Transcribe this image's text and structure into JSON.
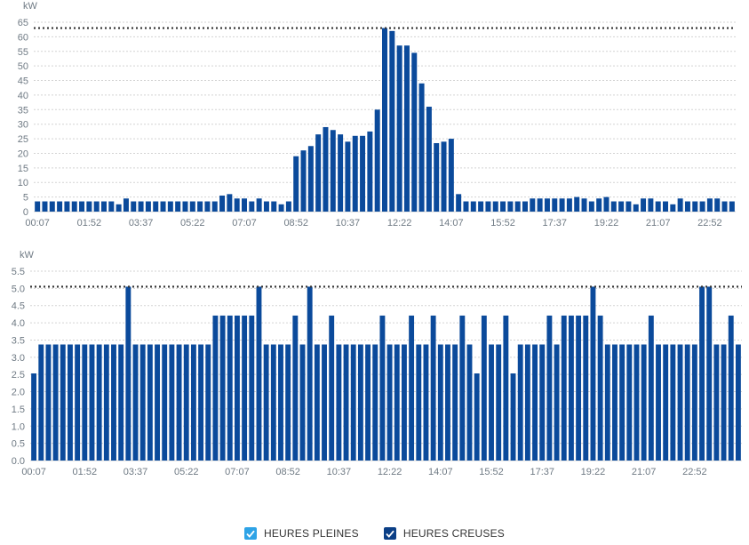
{
  "colors": {
    "bar": "#0b4a9b",
    "grid": "#d3d3d3",
    "axis_text": "#6f7a84",
    "threshold": "#333333",
    "legend_pleines": "#2ea3e6",
    "legend_creuses": "#0b3f86"
  },
  "legend": {
    "pleines_label": "HEURES PLEINES",
    "creuses_label": "HEURES CREUSES"
  },
  "chart_data": [
    {
      "type": "bar",
      "unit": "kW",
      "ylim": [
        0,
        65
      ],
      "yticks": [
        0,
        5,
        10,
        15,
        20,
        25,
        30,
        35,
        40,
        45,
        50,
        55,
        60,
        65
      ],
      "grid": true,
      "threshold": 63,
      "xtick_labels": [
        "00:07",
        "01:52",
        "03:37",
        "05:22",
        "07:07",
        "08:52",
        "10:37",
        "12:22",
        "14:07",
        "15:52",
        "17:37",
        "19:22",
        "21:07",
        "22:52"
      ],
      "xtick_every": 7,
      "values": [
        3.5,
        3.5,
        3.5,
        3.5,
        3.5,
        3.5,
        3.5,
        3.5,
        3.5,
        3.5,
        3.5,
        2.5,
        4.5,
        3.5,
        3.5,
        3.5,
        3.5,
        3.5,
        3.5,
        3.5,
        3.5,
        3.5,
        3.5,
        3.5,
        3.5,
        5.5,
        6,
        4.5,
        4.5,
        3.5,
        4.5,
        3.5,
        3.5,
        2.5,
        3.5,
        19,
        21,
        22.5,
        26.5,
        29,
        28,
        26.5,
        24,
        26,
        26,
        27.5,
        35,
        63,
        62,
        57,
        57,
        54.5,
        44,
        36,
        23.5,
        24,
        25,
        6,
        3.5,
        3.5,
        3.5,
        3.5,
        3.5,
        3.5,
        3.5,
        3.5,
        3.5,
        4.5,
        4.5,
        4.5,
        4.5,
        4.5,
        4.5,
        5,
        4.5,
        3.5,
        4.5,
        5,
        3.5,
        3.5,
        3.5,
        2.5,
        4.5,
        4.5,
        3.5,
        3.5,
        2.5,
        4.5,
        3.5,
        3.5,
        3.5,
        4.5,
        4.5,
        3.5,
        3.5
      ]
    },
    {
      "type": "bar",
      "unit": "kW",
      "ylim": [
        0,
        5.5
      ],
      "yticks": [
        "0.0",
        "0.5",
        "1.0",
        "1.5",
        "2.0",
        "2.5",
        "3.0",
        "3.5",
        "4.0",
        "4.5",
        "5.0",
        "5.5"
      ],
      "grid": true,
      "threshold": 5.05,
      "xtick_labels": [
        "00:07",
        "01:52",
        "03:37",
        "05:22",
        "07:07",
        "08:52",
        "10:37",
        "12:22",
        "14:07",
        "15:52",
        "17:37",
        "19:22",
        "21:07",
        "22:52"
      ],
      "xtick_every": 7,
      "values": [
        2.53,
        3.37,
        3.37,
        3.37,
        3.37,
        3.37,
        3.37,
        3.37,
        3.37,
        3.37,
        3.37,
        3.37,
        3.37,
        5.05,
        3.37,
        3.37,
        3.37,
        3.37,
        3.37,
        3.37,
        3.37,
        3.37,
        3.37,
        3.37,
        3.37,
        4.21,
        4.21,
        4.21,
        4.21,
        4.21,
        4.21,
        5.05,
        3.37,
        3.37,
        3.37,
        3.37,
        4.21,
        3.37,
        5.05,
        3.37,
        3.37,
        4.21,
        3.37,
        3.37,
        3.37,
        3.37,
        3.37,
        3.37,
        4.21,
        3.37,
        3.37,
        3.37,
        4.21,
        3.37,
        3.37,
        4.21,
        3.37,
        3.37,
        3.37,
        4.21,
        3.37,
        2.53,
        4.21,
        3.37,
        3.37,
        4.21,
        2.53,
        3.37,
        3.37,
        3.37,
        3.37,
        4.21,
        3.37,
        4.21,
        4.21,
        4.21,
        4.21,
        5.05,
        4.21,
        3.37,
        3.37,
        3.37,
        3.37,
        3.37,
        3.37,
        4.21,
        3.37,
        3.37,
        3.37,
        3.37,
        3.37,
        3.37,
        5.05,
        5.05,
        3.37,
        3.37,
        4.21,
        3.37
      ]
    }
  ]
}
